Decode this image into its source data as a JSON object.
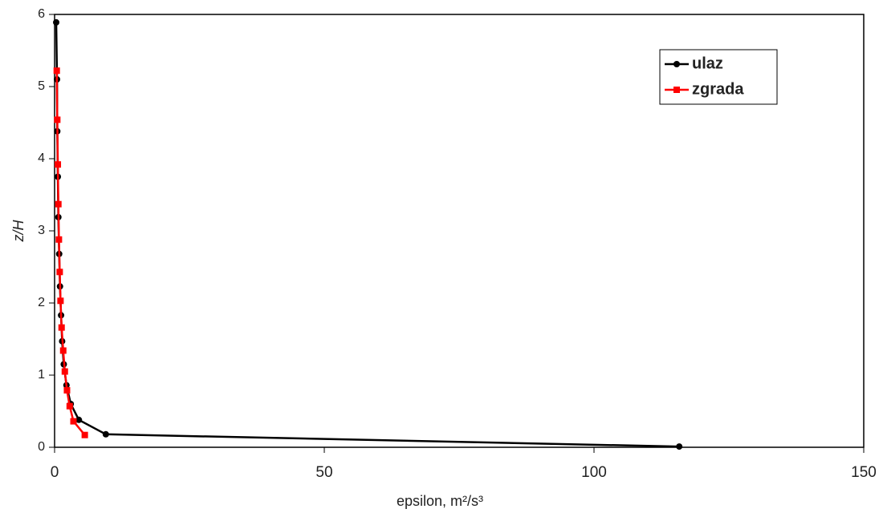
{
  "chart_data": {
    "type": "line",
    "x_label": "epsilon, m²/s³",
    "y_label": "z/H",
    "xlim": [
      0,
      150
    ],
    "xticks": [
      0,
      50,
      100,
      150
    ],
    "ylim": [
      0,
      6
    ],
    "yticks": [
      0,
      1,
      2,
      3,
      4,
      5,
      6
    ],
    "legend": "top-right",
    "series": [
      {
        "name": "ulaz",
        "color": "#000000",
        "marker": "circle",
        "x": [
          0.3,
          0.45,
          0.5,
          0.6,
          0.7,
          0.85,
          1.0,
          1.2,
          1.4,
          1.7,
          2.2,
          3.0,
          4.5,
          9.5,
          115.8
        ],
        "values": [
          5.89,
          5.1,
          4.38,
          3.75,
          3.19,
          2.68,
          2.23,
          1.83,
          1.47,
          1.15,
          0.86,
          0.6,
          0.38,
          0.18,
          0.01
        ]
      },
      {
        "name": "zgrada",
        "color": "#ff0000",
        "marker": "square",
        "x": [
          0.4,
          0.5,
          0.6,
          0.7,
          0.8,
          0.95,
          1.1,
          1.3,
          1.6,
          1.9,
          2.3,
          2.8,
          3.5,
          5.6
        ],
        "values": [
          5.22,
          4.54,
          3.92,
          3.37,
          2.88,
          2.43,
          2.03,
          1.66,
          1.34,
          1.05,
          0.79,
          0.57,
          0.36,
          0.17
        ]
      }
    ]
  }
}
